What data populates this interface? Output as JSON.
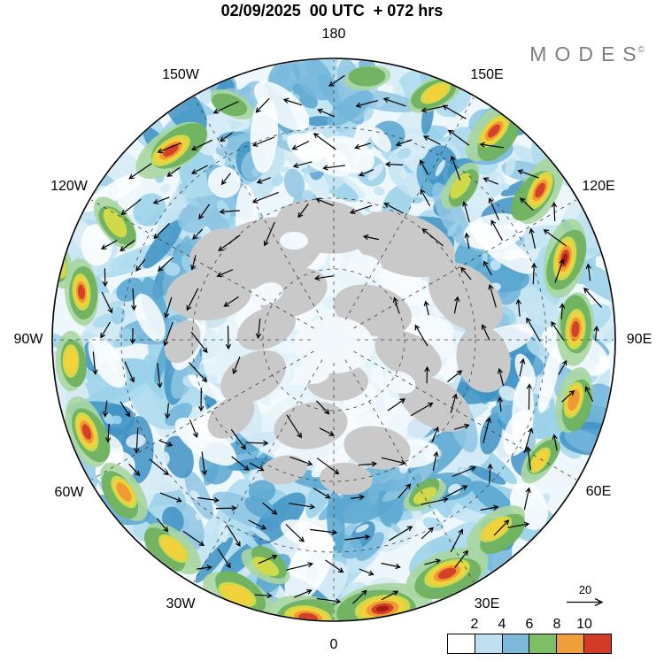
{
  "title": "02/09/2025  00 UTC  + 072 hrs",
  "logo": {
    "text": "MODES",
    "registered": "©"
  },
  "map": {
    "lon_labels": [
      "180",
      "150E",
      "120E",
      "90E",
      "60E",
      "30E",
      "0",
      "30W",
      "60W",
      "90W",
      "120W",
      "150W"
    ],
    "land_color": "#c9c9c9",
    "ocean_base_color": "#eef7fb",
    "graticule_style": "dashed",
    "overlay": "direction arrows"
  },
  "colorbar": {
    "ticks": [
      "2",
      "4",
      "6",
      "8",
      "10"
    ],
    "colors": [
      "#ffffff",
      "#bfe0f1",
      "#7cb9dd",
      "#7dbe66",
      "#f0a03a",
      "#d33a27"
    ]
  },
  "reference_vector": {
    "label": "20"
  },
  "chart_data": {
    "type": "heatmap",
    "title": "02/09/2025  00 UTC  + 072 hrs",
    "projection": "north-polar",
    "longitude_labels": [
      "180",
      "150E",
      "120E",
      "90E",
      "60E",
      "30E",
      "0",
      "30W",
      "60W",
      "90W",
      "120W",
      "150W"
    ],
    "colorbar_ticks": [
      2,
      4,
      6,
      8,
      10
    ],
    "colorbar_colors": [
      "#ffffff",
      "#bfe0f1",
      "#7cb9dd",
      "#7dbe66",
      "#f0a03a",
      "#d33a27"
    ],
    "reference_vector_value": 20,
    "overlay": "direction arrows",
    "legend_position": "bottom-right",
    "branding": "MODES©"
  }
}
